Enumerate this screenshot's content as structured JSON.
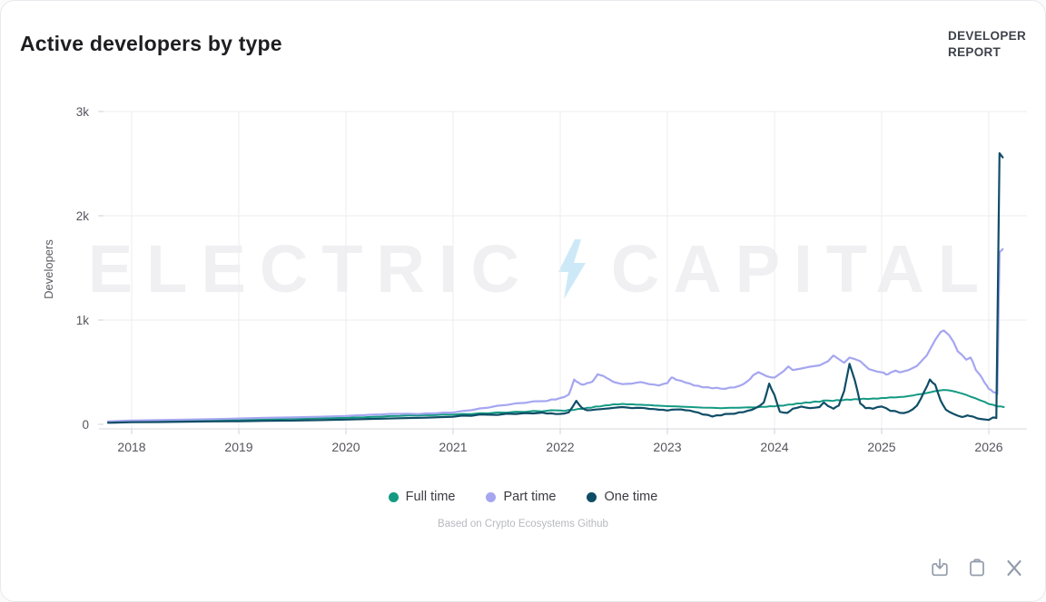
{
  "header": {
    "title": "Active developers by type",
    "badge_line1": "DEVELOPER",
    "badge_line2": "REPORT"
  },
  "watermark": {
    "left": "ELECTRIC",
    "right": "CAPITAL",
    "bolt_color": "#cde9f7"
  },
  "caption": "Based on Crypto Ecosystems Github",
  "toolbar": {
    "icons": [
      "download-icon",
      "copy-icon",
      "x-social-icon"
    ]
  },
  "chart_data": {
    "type": "line",
    "title": "Active developers by type",
    "xlabel": "",
    "ylabel": "Developers",
    "ylim": [
      0,
      3000
    ],
    "xlim": [
      2017.75,
      2026.2
    ],
    "grid": true,
    "legend_position": "bottom",
    "yticks": [
      {
        "v": 0,
        "label": "0"
      },
      {
        "v": 1000,
        "label": "1k"
      },
      {
        "v": 2000,
        "label": "2k"
      },
      {
        "v": 3000,
        "label": "3k"
      }
    ],
    "xticks": [
      2018,
      2019,
      2020,
      2021,
      2022,
      2023,
      2024,
      2025,
      2026
    ],
    "series": [
      {
        "name": "Full time",
        "color": "#149a83",
        "points": [
          [
            2017.78,
            22
          ],
          [
            2017.9,
            25
          ],
          [
            2018.0,
            28
          ],
          [
            2018.17,
            30
          ],
          [
            2018.33,
            33
          ],
          [
            2018.5,
            36
          ],
          [
            2018.67,
            38
          ],
          [
            2018.83,
            40
          ],
          [
            2019.0,
            44
          ],
          [
            2019.17,
            48
          ],
          [
            2019.33,
            52
          ],
          [
            2019.5,
            55
          ],
          [
            2019.67,
            57
          ],
          [
            2019.83,
            60
          ],
          [
            2020.0,
            62
          ],
          [
            2020.17,
            68
          ],
          [
            2020.33,
            74
          ],
          [
            2020.5,
            80
          ],
          [
            2020.67,
            84
          ],
          [
            2020.83,
            88
          ],
          [
            2021.0,
            92
          ],
          [
            2021.17,
            98
          ],
          [
            2021.33,
            105
          ],
          [
            2021.5,
            112
          ],
          [
            2021.67,
            118
          ],
          [
            2021.83,
            124
          ],
          [
            2022.0,
            132
          ],
          [
            2022.08,
            138
          ],
          [
            2022.17,
            148
          ],
          [
            2022.25,
            158
          ],
          [
            2022.33,
            170
          ],
          [
            2022.42,
            182
          ],
          [
            2022.5,
            192
          ],
          [
            2022.58,
            196
          ],
          [
            2022.67,
            192
          ],
          [
            2022.75,
            188
          ],
          [
            2022.83,
            184
          ],
          [
            2022.92,
            178
          ],
          [
            2023.0,
            174
          ],
          [
            2023.17,
            168
          ],
          [
            2023.33,
            160
          ],
          [
            2023.5,
            155
          ],
          [
            2023.67,
            158
          ],
          [
            2023.83,
            162
          ],
          [
            2023.92,
            168
          ],
          [
            2024.0,
            172
          ],
          [
            2024.08,
            178
          ],
          [
            2024.17,
            190
          ],
          [
            2024.25,
            200
          ],
          [
            2024.33,
            208
          ],
          [
            2024.42,
            216
          ],
          [
            2024.5,
            228
          ],
          [
            2024.58,
            232
          ],
          [
            2024.67,
            238
          ],
          [
            2024.75,
            242
          ],
          [
            2024.83,
            246
          ],
          [
            2024.92,
            248
          ],
          [
            2025.0,
            252
          ],
          [
            2025.08,
            258
          ],
          [
            2025.17,
            262
          ],
          [
            2025.25,
            270
          ],
          [
            2025.33,
            285
          ],
          [
            2025.42,
            300
          ],
          [
            2025.5,
            318
          ],
          [
            2025.58,
            330
          ],
          [
            2025.65,
            322
          ],
          [
            2025.75,
            295
          ],
          [
            2025.83,
            265
          ],
          [
            2025.92,
            230
          ],
          [
            2026.0,
            195
          ],
          [
            2026.08,
            172
          ],
          [
            2026.14,
            165
          ]
        ]
      },
      {
        "name": "Part time",
        "color": "#a5a6f0",
        "points": [
          [
            2017.78,
            28
          ],
          [
            2018.0,
            36
          ],
          [
            2018.25,
            40
          ],
          [
            2018.5,
            45
          ],
          [
            2018.75,
            50
          ],
          [
            2019.0,
            56
          ],
          [
            2019.25,
            62
          ],
          [
            2019.5,
            66
          ],
          [
            2019.75,
            72
          ],
          [
            2020.0,
            80
          ],
          [
            2020.17,
            88
          ],
          [
            2020.33,
            95
          ],
          [
            2020.5,
            100
          ],
          [
            2020.67,
            98
          ],
          [
            2020.83,
            104
          ],
          [
            2021.0,
            112
          ],
          [
            2021.17,
            135
          ],
          [
            2021.33,
            160
          ],
          [
            2021.5,
            185
          ],
          [
            2021.67,
            205
          ],
          [
            2021.83,
            222
          ],
          [
            2021.92,
            238
          ],
          [
            2022.0,
            252
          ],
          [
            2022.08,
            285
          ],
          [
            2022.13,
            430
          ],
          [
            2022.17,
            400
          ],
          [
            2022.21,
            380
          ],
          [
            2022.25,
            395
          ],
          [
            2022.3,
            410
          ],
          [
            2022.35,
            480
          ],
          [
            2022.4,
            465
          ],
          [
            2022.46,
            430
          ],
          [
            2022.5,
            405
          ],
          [
            2022.58,
            385
          ],
          [
            2022.67,
            390
          ],
          [
            2022.75,
            405
          ],
          [
            2022.83,
            385
          ],
          [
            2022.92,
            372
          ],
          [
            2023.0,
            395
          ],
          [
            2023.04,
            450
          ],
          [
            2023.08,
            428
          ],
          [
            2023.17,
            400
          ],
          [
            2023.25,
            372
          ],
          [
            2023.33,
            355
          ],
          [
            2023.42,
            345
          ],
          [
            2023.5,
            342
          ],
          [
            2023.58,
            352
          ],
          [
            2023.67,
            368
          ],
          [
            2023.75,
            415
          ],
          [
            2023.8,
            470
          ],
          [
            2023.85,
            500
          ],
          [
            2023.9,
            475
          ],
          [
            2023.95,
            455
          ],
          [
            2024.0,
            448
          ],
          [
            2024.08,
            505
          ],
          [
            2024.13,
            555
          ],
          [
            2024.17,
            520
          ],
          [
            2024.25,
            535
          ],
          [
            2024.33,
            552
          ],
          [
            2024.42,
            565
          ],
          [
            2024.5,
            605
          ],
          [
            2024.55,
            660
          ],
          [
            2024.6,
            625
          ],
          [
            2024.65,
            590
          ],
          [
            2024.7,
            640
          ],
          [
            2024.75,
            625
          ],
          [
            2024.8,
            605
          ],
          [
            2024.88,
            530
          ],
          [
            2024.96,
            505
          ],
          [
            2025.0,
            498
          ],
          [
            2025.04,
            478
          ],
          [
            2025.08,
            495
          ],
          [
            2025.13,
            515
          ],
          [
            2025.17,
            498
          ],
          [
            2025.25,
            520
          ],
          [
            2025.33,
            560
          ],
          [
            2025.42,
            660
          ],
          [
            2025.5,
            810
          ],
          [
            2025.55,
            885
          ],
          [
            2025.58,
            900
          ],
          [
            2025.63,
            855
          ],
          [
            2025.67,
            790
          ],
          [
            2025.71,
            700
          ],
          [
            2025.75,
            665
          ],
          [
            2025.79,
            620
          ],
          [
            2025.83,
            640
          ],
          [
            2025.85,
            600
          ],
          [
            2025.88,
            520
          ],
          [
            2025.92,
            470
          ],
          [
            2025.96,
            400
          ],
          [
            2026.0,
            340
          ],
          [
            2026.04,
            310
          ],
          [
            2026.08,
            290
          ],
          [
            2026.1,
            1650
          ],
          [
            2026.13,
            1680
          ]
        ]
      },
      {
        "name": "One time",
        "color": "#0f4d66",
        "points": [
          [
            2017.78,
            15
          ],
          [
            2018.0,
            20
          ],
          [
            2018.25,
            22
          ],
          [
            2018.5,
            25
          ],
          [
            2018.75,
            28
          ],
          [
            2019.0,
            30
          ],
          [
            2019.25,
            33
          ],
          [
            2019.5,
            36
          ],
          [
            2019.75,
            40
          ],
          [
            2020.0,
            45
          ],
          [
            2020.25,
            52
          ],
          [
            2020.5,
            58
          ],
          [
            2020.75,
            64
          ],
          [
            2021.0,
            72
          ],
          [
            2021.17,
            82
          ],
          [
            2021.33,
            92
          ],
          [
            2021.5,
            102
          ],
          [
            2021.67,
            108
          ],
          [
            2021.83,
            112
          ],
          [
            2021.92,
            105
          ],
          [
            2022.0,
            100
          ],
          [
            2022.08,
            115
          ],
          [
            2022.15,
            225
          ],
          [
            2022.2,
            160
          ],
          [
            2022.25,
            135
          ],
          [
            2022.33,
            142
          ],
          [
            2022.42,
            150
          ],
          [
            2022.5,
            158
          ],
          [
            2022.58,
            165
          ],
          [
            2022.67,
            155
          ],
          [
            2022.75,
            158
          ],
          [
            2022.83,
            148
          ],
          [
            2022.92,
            140
          ],
          [
            2023.0,
            132
          ],
          [
            2023.08,
            142
          ],
          [
            2023.17,
            135
          ],
          [
            2023.25,
            120
          ],
          [
            2023.33,
            95
          ],
          [
            2023.42,
            75
          ],
          [
            2023.5,
            85
          ],
          [
            2023.58,
            100
          ],
          [
            2023.67,
            115
          ],
          [
            2023.75,
            130
          ],
          [
            2023.83,
            160
          ],
          [
            2023.9,
            210
          ],
          [
            2023.95,
            390
          ],
          [
            2024.0,
            280
          ],
          [
            2024.05,
            120
          ],
          [
            2024.12,
            110
          ],
          [
            2024.17,
            150
          ],
          [
            2024.25,
            170
          ],
          [
            2024.33,
            155
          ],
          [
            2024.42,
            165
          ],
          [
            2024.46,
            210
          ],
          [
            2024.5,
            175
          ],
          [
            2024.55,
            150
          ],
          [
            2024.6,
            180
          ],
          [
            2024.65,
            320
          ],
          [
            2024.7,
            580
          ],
          [
            2024.75,
            420
          ],
          [
            2024.8,
            200
          ],
          [
            2024.85,
            155
          ],
          [
            2024.92,
            150
          ],
          [
            2025.0,
            170
          ],
          [
            2025.08,
            130
          ],
          [
            2025.17,
            110
          ],
          [
            2025.25,
            120
          ],
          [
            2025.33,
            180
          ],
          [
            2025.4,
            320
          ],
          [
            2025.45,
            430
          ],
          [
            2025.5,
            380
          ],
          [
            2025.55,
            230
          ],
          [
            2025.6,
            140
          ],
          [
            2025.67,
            100
          ],
          [
            2025.75,
            70
          ],
          [
            2025.8,
            85
          ],
          [
            2025.85,
            75
          ],
          [
            2025.9,
            55
          ],
          [
            2025.95,
            48
          ],
          [
            2026.0,
            42
          ],
          [
            2026.04,
            65
          ],
          [
            2026.07,
            60
          ],
          [
            2026.1,
            2600
          ],
          [
            2026.13,
            2560
          ]
        ]
      }
    ]
  }
}
